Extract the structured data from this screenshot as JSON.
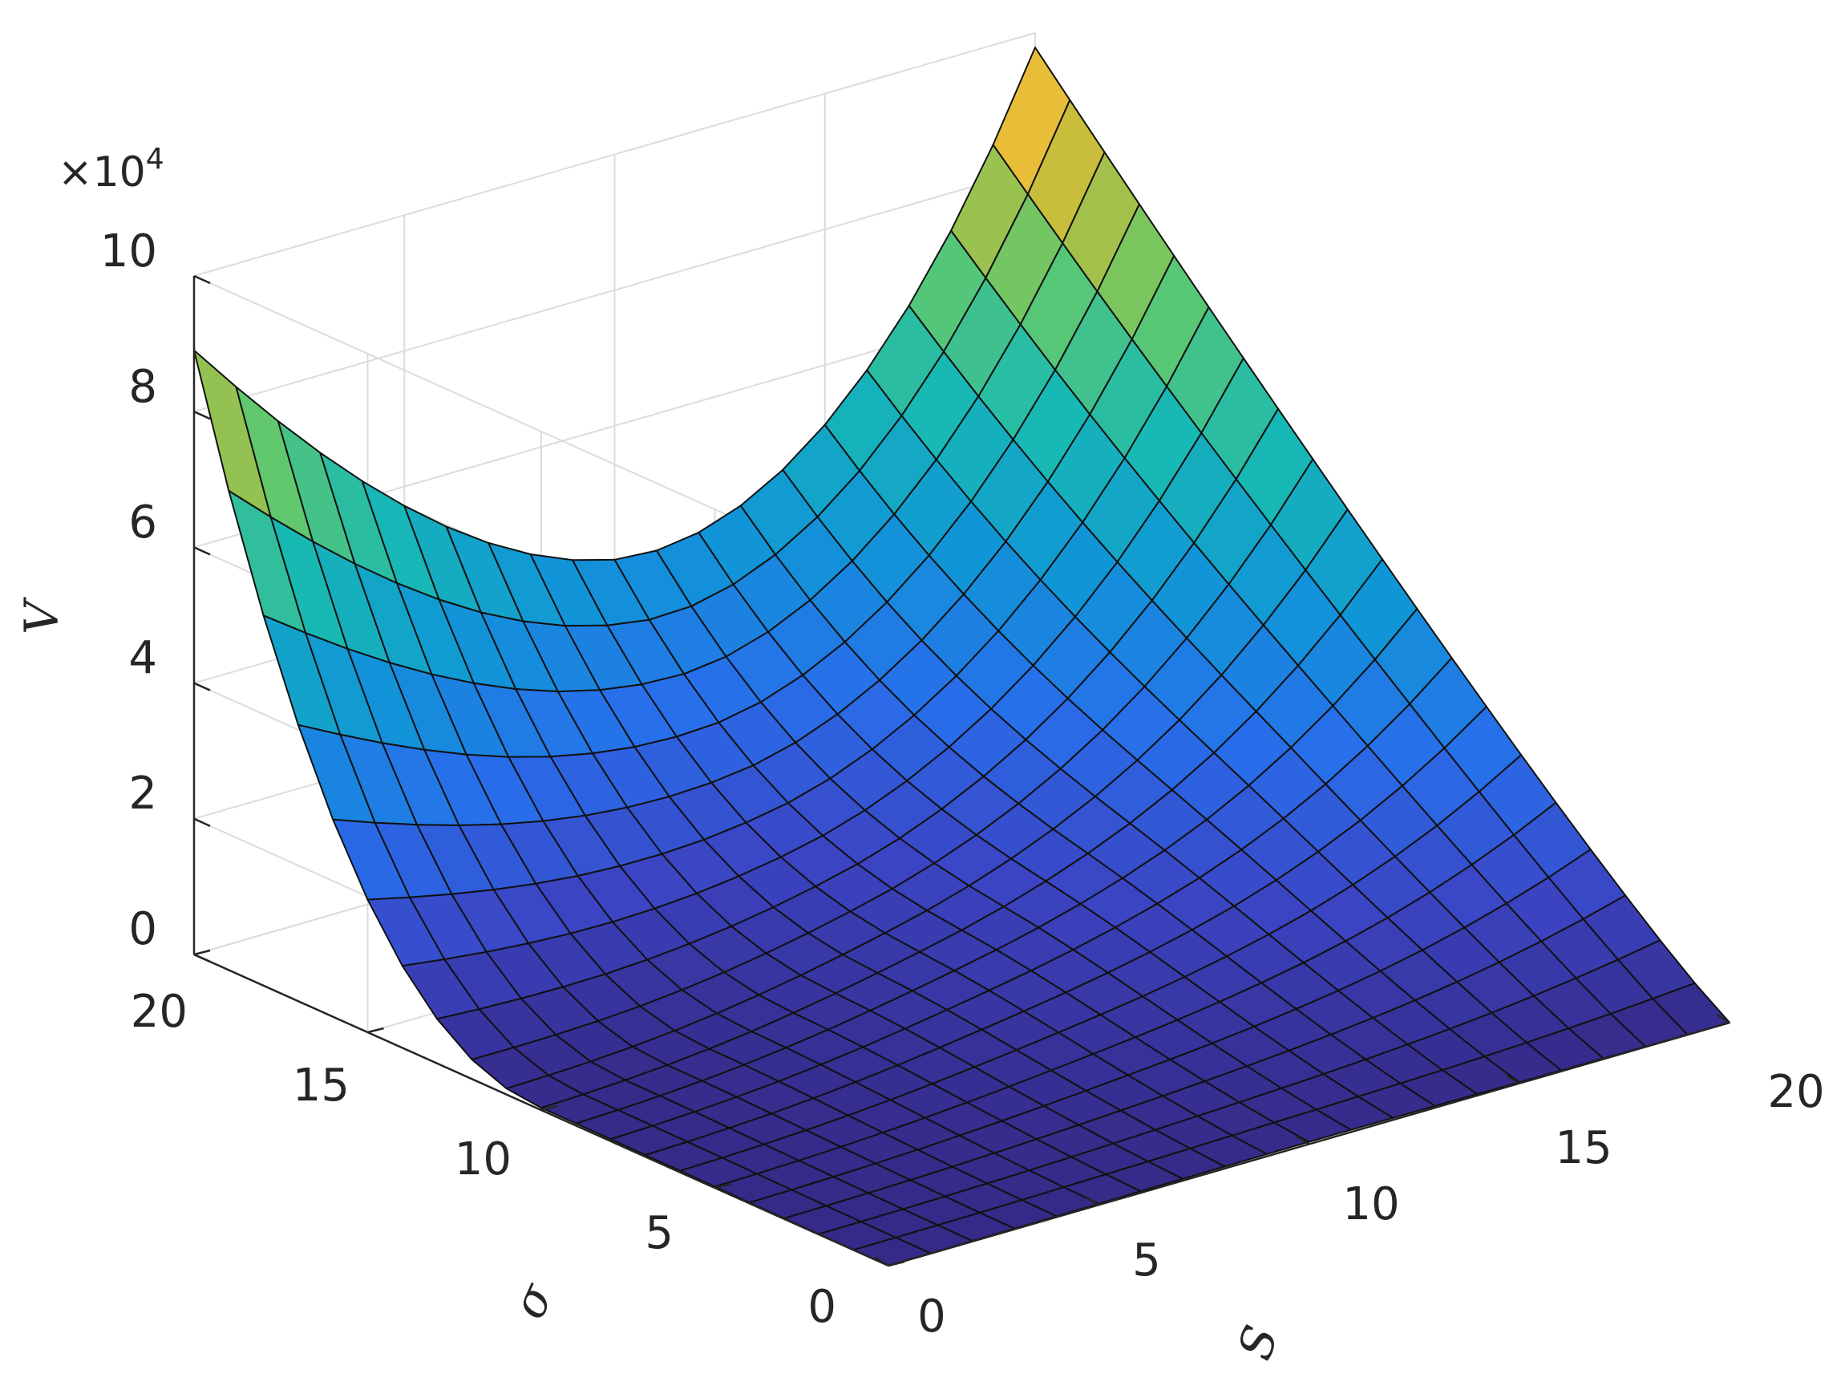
{
  "chart_data": {
    "type": "surface",
    "title": "",
    "xlabel": "S",
    "ylabel": "σ",
    "zlabel": "V",
    "z_multiplier": "×10",
    "z_multiplier_exp": "4",
    "xlim": [
      0,
      20
    ],
    "ylim": [
      0,
      20
    ],
    "zlim": [
      0,
      100000
    ],
    "x_ticks": [
      "0",
      "5",
      "10",
      "15",
      "20"
    ],
    "y_ticks": [
      "0",
      "5",
      "10",
      "15",
      "20"
    ],
    "z_ticks": [
      "0",
      "2",
      "4",
      "6",
      "8",
      "10"
    ],
    "grid": true,
    "colormap": "parula",
    "mesh_resolution": 21,
    "corner_values": [
      {
        "x": 0,
        "y": 0,
        "z": 0
      },
      {
        "x": 20,
        "y": 0,
        "z": 0
      },
      {
        "x": 0,
        "y": 20,
        "z": 89000
      },
      {
        "x": 20,
        "y": 20,
        "z": 91000
      }
    ],
    "saddle_point": {
      "x": 10,
      "y": 10,
      "z": 4000
    }
  }
}
